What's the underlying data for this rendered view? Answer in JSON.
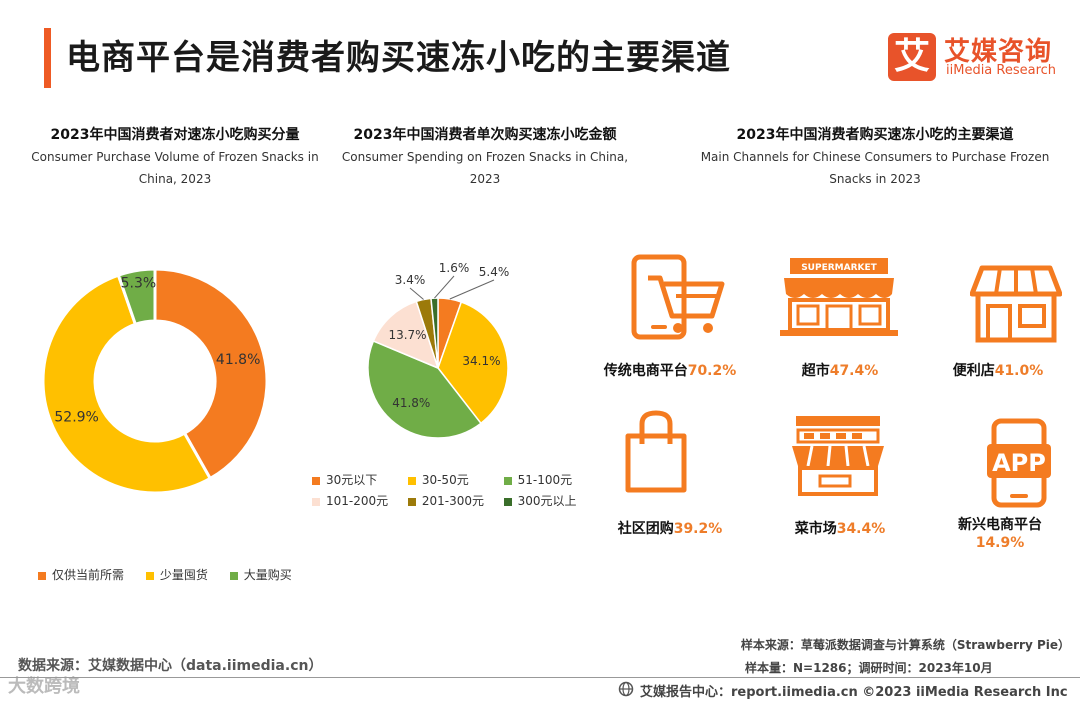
{
  "header": {
    "title": "电商平台是消费者购买速冻小吃的主要渠道",
    "logo_mark": "艾",
    "logo_cn": "艾媒咨询",
    "logo_en": "iiMedia Research"
  },
  "colors": {
    "orange": "#f47b20",
    "yellow": "#ffc000",
    "green": "#70ad47",
    "peach": "#fce0d2",
    "olive": "#9c7a0a",
    "darkgreen": "#3a6e2a",
    "accent": "#ee5a24"
  },
  "chart_data": [
    {
      "type": "pie",
      "donut": true,
      "title": "2023年中国消费者对速冻小吃购买分量",
      "subtitle": "Consumer Purchase Volume of Frozen Snacks in China, 2023",
      "categories": [
        "仅供当前所需",
        "少量囤货",
        "大量购买"
      ],
      "values": [
        41.8,
        52.9,
        5.3
      ],
      "labels": [
        "41.8%",
        "52.9%",
        "5.3%"
      ],
      "legend_position": "bottom"
    },
    {
      "type": "pie",
      "title": "2023年中国消费者单次购买速冻小吃金额",
      "subtitle": "Consumer Spending on Frozen Snacks in China, 2023",
      "categories": [
        "30元以下",
        "30-50元",
        "51-100元",
        "101-200元",
        "201-300元",
        "300元以上"
      ],
      "values": [
        5.4,
        34.1,
        41.8,
        13.7,
        3.4,
        1.6
      ],
      "labels": [
        "5.4%",
        "34.1%",
        "41.8%",
        "13.7%",
        "3.4%",
        "1.6%"
      ],
      "legend_position": "bottom"
    },
    {
      "type": "table",
      "title": "2023年中国消费者购买速冻小吃的主要渠道",
      "subtitle": "Main Channels for Chinese Consumers to Purchase Frozen Snacks in 2023",
      "items": [
        {
          "name": "传统电商平台",
          "pct": "70.2%",
          "icon": "phone-cart-icon"
        },
        {
          "name": "超市",
          "pct": "47.4%",
          "icon": "supermarket-icon",
          "sign": "SUPERMARKET"
        },
        {
          "name": "便利店",
          "pct": "41.0%",
          "icon": "convenience-store-icon"
        },
        {
          "name": "社区团购",
          "pct": "39.2%",
          "icon": "shopping-bag-icon"
        },
        {
          "name": "菜市场",
          "pct": "34.4%",
          "icon": "market-stall-icon"
        },
        {
          "name": "新兴电商平台",
          "pct": "14.9%",
          "icon": "app-phone-icon",
          "sign": "APP"
        }
      ]
    }
  ],
  "footer": {
    "source": "数据来源：艾媒数据中心（data.iimedia.cn）",
    "watermark": "大数跨境",
    "sample_source": "样本来源：草莓派数据调查与计算系统（Strawberry Pie）",
    "sample_size": "样本量：N=1286；调研时间：2023年10月",
    "report": "艾媒报告中心：report.iimedia.cn   ©2023  iiMedia Research  Inc"
  }
}
